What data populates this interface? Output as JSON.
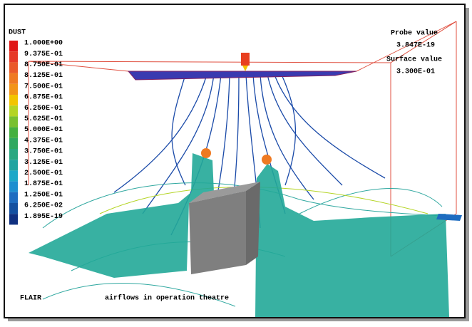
{
  "legend": {
    "title": "DUST",
    "entries": [
      {
        "label": "1.000E+00",
        "color": "#e01818"
      },
      {
        "label": "9.375E-01",
        "color": "#e63a28"
      },
      {
        "label": "8.750E-01",
        "color": "#ea5a2a"
      },
      {
        "label": "8.125E-01",
        "color": "#ef7a22"
      },
      {
        "label": "7.500E-01",
        "color": "#f29418"
      },
      {
        "label": "6.875E-01",
        "color": "#f2c400"
      },
      {
        "label": "6.250E-01",
        "color": "#b4d424"
      },
      {
        "label": "5.625E-01",
        "color": "#78c030"
      },
      {
        "label": "5.000E-01",
        "color": "#44b040"
      },
      {
        "label": "4.375E-01",
        "color": "#30a860"
      },
      {
        "label": "3.750E-01",
        "color": "#2aa880"
      },
      {
        "label": "3.125E-01",
        "color": "#20a4a0"
      },
      {
        "label": "2.500E-01",
        "color": "#1ea8c8"
      },
      {
        "label": "1.875E-01",
        "color": "#1e8ed0"
      },
      {
        "label": "1.250E-01",
        "color": "#1e6cc0"
      },
      {
        "label": "6.250E-02",
        "color": "#1450a0"
      },
      {
        "label": "1.895E-19",
        "color": "#103080"
      }
    ]
  },
  "probe": {
    "label": "Probe value",
    "value": "3.847E-19"
  },
  "surface": {
    "label": "Surface value",
    "value": "3.300E-01"
  },
  "footer": {
    "program": "FLAIR",
    "caption": "airflows in operation theatre"
  }
}
